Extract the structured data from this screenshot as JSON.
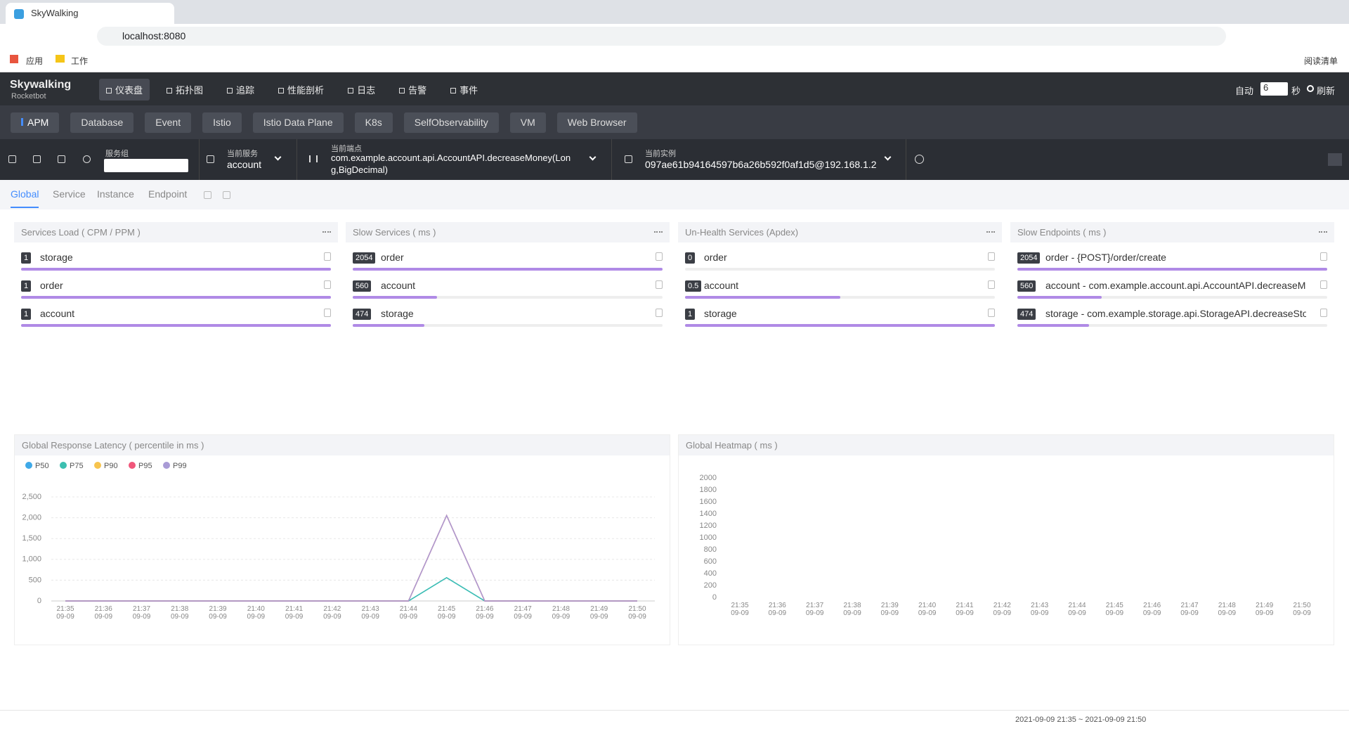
{
  "browser": {
    "tab_title": "SkyWalking",
    "url": "localhost:8080",
    "bookmarks": [
      "应用",
      "工作"
    ],
    "reading_list": "阅读清单"
  },
  "nav": {
    "logo": "Skywalking",
    "logo_sub": "Rocketbot",
    "items": [
      "仪表盘",
      "拓扑图",
      "追踪",
      "性能剖析",
      "日志",
      "告警",
      "事件"
    ],
    "auto": "自动",
    "interval": "6",
    "interval_unit": "秒",
    "refresh": "刷新"
  },
  "layers": [
    "APM",
    "Database",
    "Event",
    "Istio",
    "Istio Data Plane",
    "K8s",
    "SelfObservability",
    "VM",
    "Web Browser"
  ],
  "toolbar": {
    "group_label": "服务组",
    "service_label": "当前服务",
    "service": "account",
    "endpoint_label": "当前端点",
    "endpoint": "com.example.account.api.AccountAPI.decreaseMoney(Long,BigDecimal)",
    "instance_label": "当前实例",
    "instance": "097ae61b94164597b6a26b592f0af1d5@192.168.1.2"
  },
  "tabs": [
    "Global",
    "Service",
    "Instance",
    "Endpoint"
  ],
  "panels": [
    {
      "title": "Services Load ( CPM / PPM )",
      "items": [
        {
          "value": 1,
          "name": "storage"
        },
        {
          "value": 1,
          "name": "order"
        },
        {
          "value": 1,
          "name": "account"
        }
      ]
    },
    {
      "title": "Slow Services ( ms )",
      "items": [
        {
          "value": 2054,
          "name": "order"
        },
        {
          "value": 560,
          "name": "account"
        },
        {
          "value": 474,
          "name": "storage"
        }
      ]
    },
    {
      "title": "Un-Health Services (Apdex)",
      "items": [
        {
          "value": 0,
          "name": "order"
        },
        {
          "value": 0.5,
          "name": "account"
        },
        {
          "value": 1,
          "name": "storage"
        }
      ]
    },
    {
      "title": "Slow Endpoints ( ms )",
      "items": [
        {
          "value": 2054,
          "name": "order - {POST}/order/create"
        },
        {
          "value": 560,
          "name": "account - com.example.account.api.AccountAPI.decreaseMo..."
        },
        {
          "value": 474,
          "name": "storage - com.example.storage.api.StorageAPI.decreaseStor..."
        }
      ]
    }
  ],
  "chart_data": [
    {
      "type": "line",
      "title": "Global Response Latency ( percentile in ms )",
      "categories": [
        "21:35\n09-09",
        "21:36\n09-09",
        "21:37\n09-09",
        "21:38\n09-09",
        "21:39\n09-09",
        "21:40\n09-09",
        "21:41\n09-09",
        "21:42\n09-09",
        "21:43\n09-09",
        "21:44\n09-09",
        "21:45\n09-09",
        "21:46\n09-09",
        "21:47\n09-09",
        "21:48\n09-09",
        "21:49\n09-09",
        "21:50\n09-09"
      ],
      "series": [
        {
          "name": "P50",
          "color": "#3fa9e8",
          "values": [
            0,
            0,
            0,
            0,
            0,
            0,
            0,
            0,
            0,
            0,
            560,
            0,
            0,
            0,
            0,
            0
          ]
        },
        {
          "name": "P75",
          "color": "#3cbfb0",
          "values": [
            0,
            0,
            0,
            0,
            0,
            0,
            0,
            0,
            0,
            0,
            560,
            0,
            0,
            0,
            0,
            0
          ]
        },
        {
          "name": "P90",
          "color": "#f7c44e",
          "values": [
            0,
            0,
            0,
            0,
            0,
            0,
            0,
            0,
            0,
            0,
            2054,
            0,
            0,
            0,
            0,
            0
          ]
        },
        {
          "name": "P95",
          "color": "#f0567a",
          "values": [
            0,
            0,
            0,
            0,
            0,
            0,
            0,
            0,
            0,
            0,
            2054,
            0,
            0,
            0,
            0,
            0
          ]
        },
        {
          "name": "P99",
          "color": "#a99bd6",
          "values": [
            0,
            0,
            0,
            0,
            0,
            0,
            0,
            0,
            0,
            0,
            2054,
            0,
            0,
            0,
            0,
            0
          ]
        }
      ],
      "ylim": [
        0,
        2500
      ],
      "yticks": [
        0,
        500,
        {
          "value": 1000,
          "label": "1,000"
        },
        {
          "value": 1500,
          "label": "1,500"
        },
        {
          "value": 2000,
          "label": "2,000"
        },
        {
          "value": 2500,
          "label": "2,500"
        }
      ],
      "grid": true
    },
    {
      "type": "heatmap",
      "title": "Global Heatmap ( ms )",
      "categories": [
        "21:35\n09-09",
        "21:36\n09-09",
        "21:37\n09-09",
        "21:38\n09-09",
        "21:39\n09-09",
        "21:40\n09-09",
        "21:41\n09-09",
        "21:42\n09-09",
        "21:43\n09-09",
        "21:44\n09-09",
        "21:45\n09-09",
        "21:46\n09-09",
        "21:47\n09-09",
        "21:48\n09-09",
        "21:49\n09-09",
        "21:50\n09-09"
      ],
      "ylim": [
        0,
        2000
      ],
      "yticks": [
        0,
        200,
        400,
        600,
        800,
        1000,
        1200,
        1400,
        1600,
        1800,
        2000
      ],
      "grid": false
    }
  ],
  "footer": {
    "time_range": "2021-09-09 21:35 ~ 2021-09-09 21:50"
  }
}
